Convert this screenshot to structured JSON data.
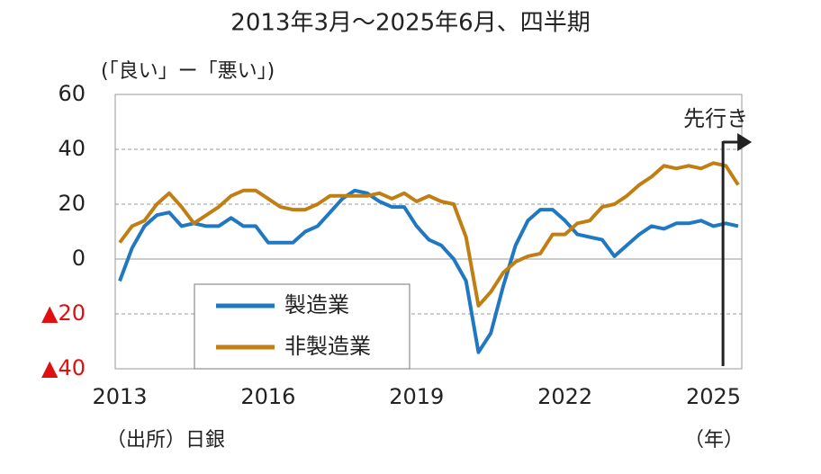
{
  "chart_data": {
    "type": "line",
    "title": "2013年3月～2025年6月、四半期",
    "y_label": "(「良い」ー「悪い」)",
    "source": "（出所）日銀",
    "x_unit": "（年）",
    "forecast_label": "先行き",
    "categories": [
      "2013",
      null,
      null,
      null,
      null,
      null,
      null,
      null,
      null,
      null,
      null,
      null,
      "2016",
      null,
      null,
      null,
      null,
      null,
      null,
      null,
      null,
      null,
      null,
      null,
      "2019",
      null,
      null,
      null,
      null,
      null,
      null,
      null,
      null,
      null,
      null,
      null,
      "2022",
      null,
      null,
      null,
      null,
      null,
      null,
      null,
      null,
      null,
      null,
      null,
      "2025",
      null,
      null
    ],
    "series": [
      {
        "name": "製造業",
        "color": "#1f78c1",
        "values": [
          -8,
          4,
          12,
          16,
          17,
          12,
          13,
          12,
          12,
          15,
          12,
          12,
          6,
          6,
          6,
          10,
          12,
          17,
          22,
          25,
          24,
          21,
          19,
          19,
          12,
          7,
          5,
          0,
          -8,
          -34,
          -27,
          -10,
          5,
          14,
          18,
          18,
          14,
          9,
          8,
          7,
          1,
          5,
          9,
          12,
          11,
          13,
          13,
          14,
          12,
          13,
          12
        ]
      },
      {
        "name": "非製造業",
        "color": "#c17e12",
        "values": [
          6,
          12,
          14,
          20,
          24,
          19,
          13,
          16,
          19,
          23,
          25,
          25,
          22,
          19,
          18,
          18,
          20,
          23,
          23,
          23,
          23,
          24,
          22,
          24,
          21,
          23,
          21,
          20,
          8,
          -17,
          -12,
          -5,
          -1,
          1,
          2,
          9,
          9,
          13,
          14,
          19,
          20,
          23,
          27,
          30,
          34,
          33,
          34,
          33,
          35,
          34,
          27
        ]
      }
    ],
    "ylim": [
      -40,
      60
    ],
    "yticks": [
      60,
      40,
      20,
      0,
      {
        "value": -20,
        "label": "▲20"
      },
      {
        "value": -40,
        "label": "▲40"
      }
    ],
    "negative_tick_color": "#e01010",
    "grid": true
  }
}
